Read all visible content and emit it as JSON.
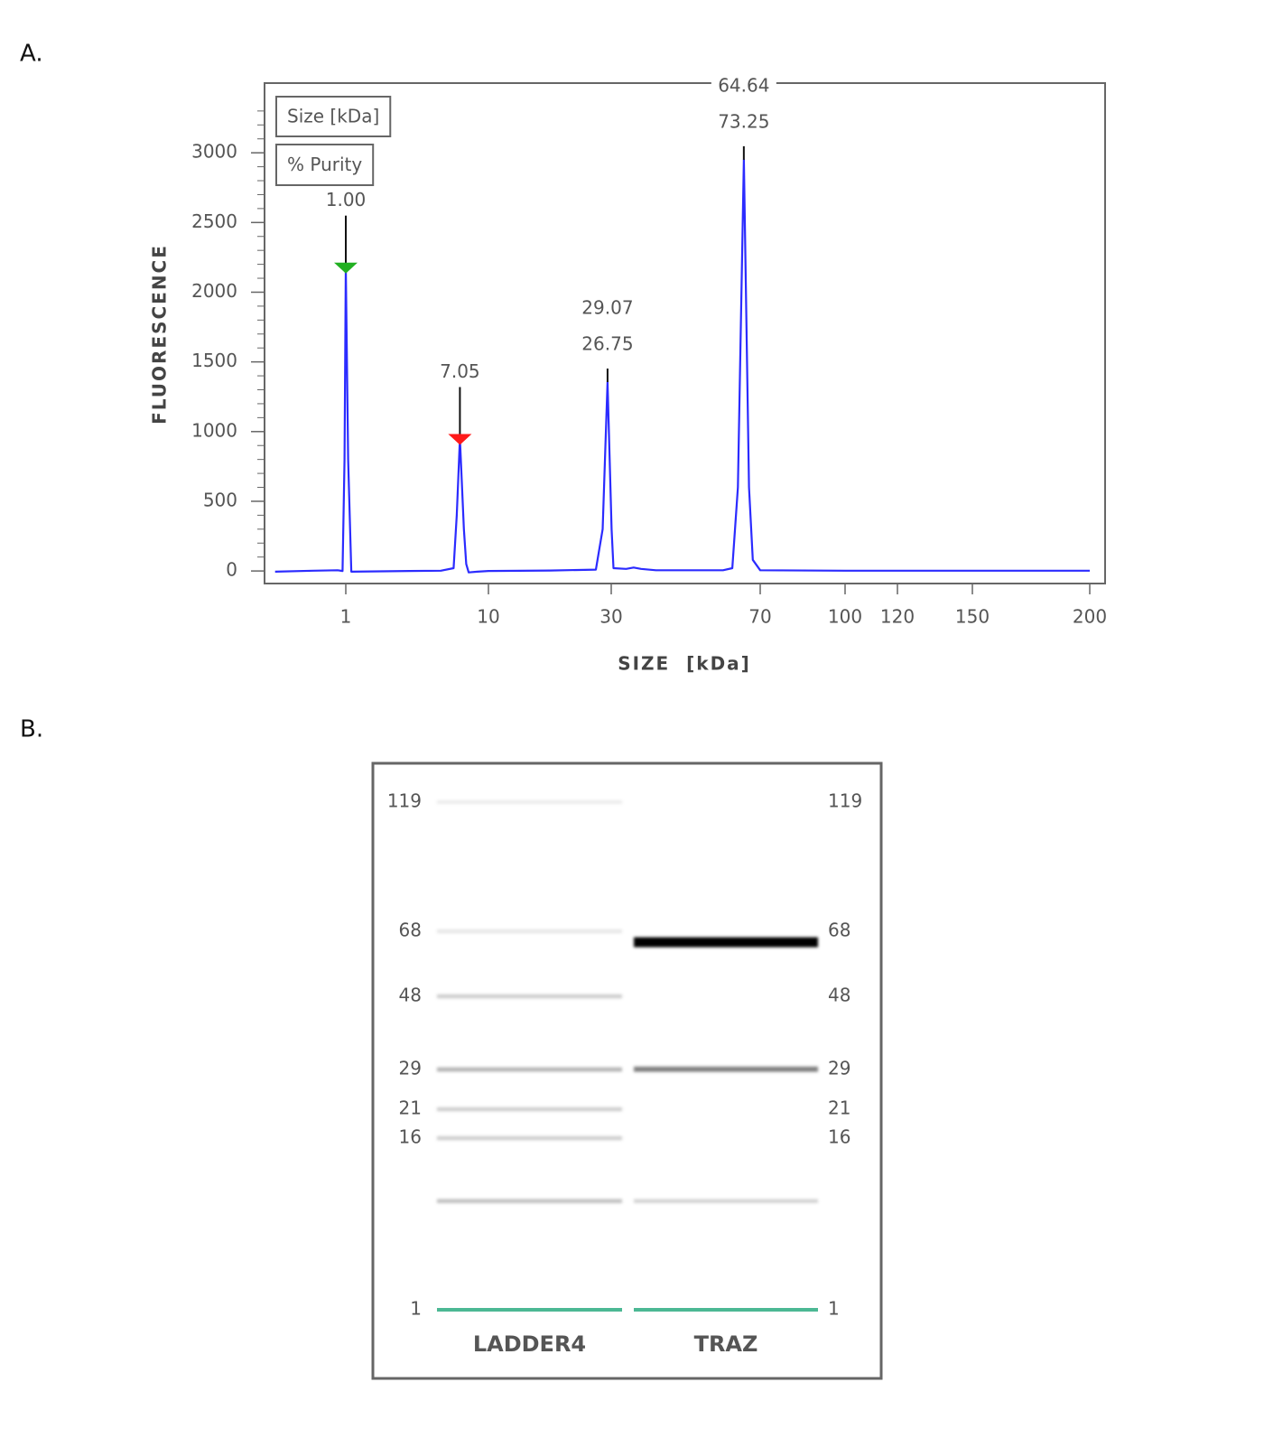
{
  "panel_labels": [
    "A.",
    "B."
  ],
  "chart_data": [
    {
      "type": "line",
      "x_label": "SIZE  [kDa]",
      "y_label": "FLUORESCENCE",
      "legend": [
        "Size [kDa]",
        "% Purity"
      ],
      "color": "#2b2bff",
      "x": [
        0.13,
        0.6,
        0.9,
        0.96,
        0.985,
        1,
        1.15,
        1.35,
        5,
        7,
        7.8,
        8,
        8.2,
        8.45,
        8.6,
        8.75,
        9.3,
        10,
        20,
        27.5,
        28.6,
        29.4,
        30.1,
        30.6,
        34,
        36,
        38,
        42,
        60,
        62.5,
        64,
        65.6,
        67,
        68,
        70,
        100,
        150,
        200
      ],
      "values": [
        -5,
        2,
        5,
        0,
        800,
        2180,
        800,
        -5,
        0,
        2,
        20,
        400,
        950,
        300,
        50,
        -10,
        -5,
        0,
        3,
        10,
        300,
        1355,
        300,
        20,
        15,
        25,
        15,
        5,
        5,
        20,
        600,
        2950,
        600,
        80,
        5,
        2,
        2,
        2
      ],
      "xlim": [
        0,
        206
      ],
      "xticks": [
        1,
        10,
        30,
        70,
        100,
        120,
        150,
        200
      ],
      "ylim": [
        -90,
        3500
      ],
      "yticks": [
        0,
        500,
        1000,
        1500,
        2000,
        2500,
        3000
      ],
      "minor_yticks": [
        100,
        200,
        300,
        400,
        600,
        700,
        800,
        900,
        1100,
        1200,
        1300,
        1400,
        1600,
        1700,
        1800,
        1900,
        2100,
        2200,
        2300,
        2400,
        2600,
        2700,
        2800,
        2900,
        3100,
        3200,
        3300
      ],
      "peaks": [
        {
          "x": 1,
          "height": 2180,
          "labels": [
            "1.00"
          ],
          "marker_color": "#22b022"
        },
        {
          "x": 8.2,
          "height": 950,
          "labels": [
            "7.05"
          ],
          "marker_color": "#ff1a1a"
        },
        {
          "x": 29.4,
          "height": 1355,
          "labels": [
            "29.07",
            "26.75"
          ]
        },
        {
          "x": 65.6,
          "height": 2950,
          "labels": [
            "64.64",
            "73.25"
          ]
        }
      ]
    },
    {
      "type": "gel",
      "markers": [
        119,
        68,
        48,
        29,
        21,
        16,
        1
      ],
      "band_color": "#000000",
      "lower_marker": 1,
      "lower_marker_color": "#4cb894",
      "lanes": [
        {
          "name": "LADDER4",
          "sizes": [
            119,
            68,
            48,
            29,
            21,
            16,
            10.5
          ],
          "intensities": [
            0.08,
            0.1,
            0.2,
            0.3,
            0.2,
            0.2,
            0.25
          ]
        },
        {
          "name": "TRAZ",
          "sizes": [
            64.64,
            29.07,
            10.5
          ],
          "intensities": [
            1,
            0.5,
            0.18
          ]
        }
      ]
    }
  ]
}
